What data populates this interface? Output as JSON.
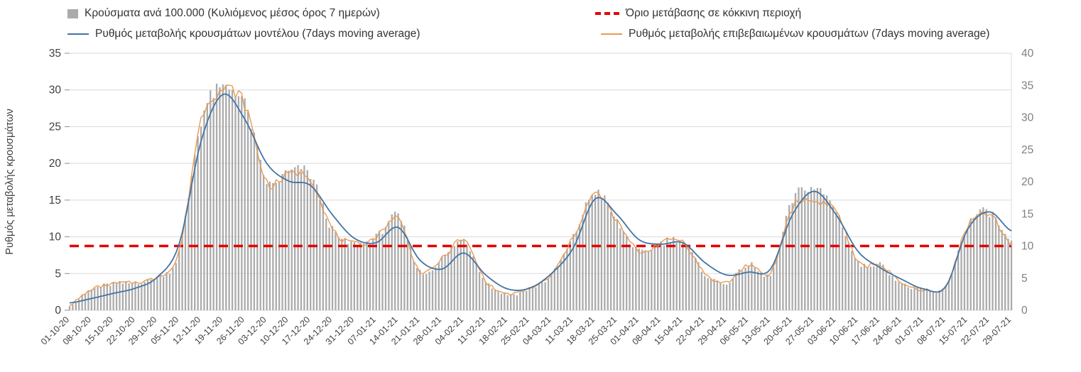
{
  "legend": {
    "bars": "Κρούσματα ανά 100.000 (Κυλιόμενος μέσος όρος 7 ημερών)",
    "threshold": "Όριο μετάβασης σε κόκκινη περιοχή",
    "model": "Ρυθμός μεταβολής κρουσμάτων μοντέλου (7days moving average)",
    "confirmed": "Ρυθμός μεταβολής επιβεβαιωμένων κρουσμάτων (7days moving average)"
  },
  "chart_data": {
    "type": "bar+line",
    "title": "",
    "ylabel_left": "Ρυθμός μεταβολής κρουσμάτων",
    "legend_position": "top",
    "grid": true,
    "x_tick_rotation": -45,
    "y_left": {
      "min": 0,
      "max": 35,
      "step": 5,
      "ticks": [
        "0",
        "5",
        "10",
        "15",
        "20",
        "25",
        "30",
        "35"
      ]
    },
    "y_right": {
      "min": 0,
      "max": 40,
      "step": 5,
      "ticks": [
        "0",
        "5",
        "10",
        "15",
        "20",
        "25",
        "30",
        "35",
        "40"
      ]
    },
    "x_labels": [
      "01-10-20",
      "08-10-20",
      "15-10-20",
      "22-10-20",
      "29-10-20",
      "05-11-20",
      "12-11-20",
      "19-11-20",
      "26-11-20",
      "03-12-20",
      "10-12-20",
      "17-12-20",
      "24-12-20",
      "31-12-20",
      "07-01-21",
      "14-01-21",
      "21-01-21",
      "28-01-21",
      "04-02-21",
      "11-02-21",
      "18-02-21",
      "25-02-21",
      "04-03-21",
      "11-03-21",
      "18-03-21",
      "25-03-21",
      "01-04-21",
      "08-04-21",
      "15-04-21",
      "22-04-21",
      "29-04-21",
      "06-05-21",
      "13-05-21",
      "20-05-21",
      "27-05-21",
      "03-06-21",
      "10-06-21",
      "17-06-21",
      "24-06-21",
      "01-07-21",
      "08-07-21",
      "15-07-21",
      "22-07-21",
      "29-07-21"
    ],
    "threshold": {
      "name": "Όριο μετάβασης σε κόκκινη περιοχή",
      "axis": "right",
      "value": 10
    },
    "series": [
      {
        "key": "bars",
        "name": "Κρούσματα ανά 100.000 (Κυλιόμενος μέσος όρος 7 ημερών)",
        "type": "bar",
        "axis": "right",
        "weekly_values": [
          0.9,
          3.2,
          4.1,
          4.3,
          5.2,
          9.1,
          29.5,
          34.5,
          32.0,
          20.0,
          21.5,
          21.0,
          12.5,
          10.3,
          11.4,
          14.5,
          6.0,
          8.0,
          10.8,
          4.6,
          2.5,
          3.4,
          5.5,
          11.4,
          18.5,
          13.7,
          9.1,
          10.5,
          10.7,
          5.7,
          4.3,
          7.1,
          5.7,
          17.0,
          19.0,
          15.5,
          7.4,
          7.1,
          4.1,
          3.2,
          3.7,
          13.1,
          15.2,
          10.3
        ]
      },
      {
        "key": "model",
        "name": "Ρυθμός μεταβολής κρουσμάτων μοντέλου (7days moving average)",
        "type": "line",
        "axis": "left",
        "weekly_values": [
          1.0,
          1.6,
          2.3,
          3.0,
          4.5,
          9.0,
          23.0,
          29.4,
          26.0,
          20.0,
          17.6,
          17.0,
          13.0,
          9.8,
          9.2,
          11.3,
          6.8,
          5.6,
          7.8,
          4.8,
          2.9,
          3.0,
          5.0,
          8.5,
          15.2,
          13.0,
          9.6,
          9.0,
          9.2,
          6.5,
          4.8,
          5.2,
          5.6,
          13.0,
          16.2,
          13.0,
          8.0,
          5.8,
          4.2,
          2.9,
          3.2,
          11.0,
          13.4,
          10.8
        ]
      },
      {
        "key": "confirmed",
        "name": "Ρυθμός μεταβολής επιβεβαιωμένων κρουσμάτων (7days moving average)",
        "type": "line",
        "axis": "left",
        "weekly_values": [
          0.8,
          2.8,
          3.6,
          3.8,
          4.6,
          8.0,
          26.0,
          30.0,
          28.0,
          17.5,
          18.5,
          18.0,
          11.0,
          9.0,
          10.0,
          12.5,
          5.2,
          7.0,
          9.5,
          4.0,
          2.2,
          3.0,
          4.8,
          10.0,
          15.8,
          12.0,
          8.0,
          9.2,
          9.4,
          5.0,
          3.8,
          6.2,
          5.0,
          14.0,
          14.8,
          13.5,
          6.5,
          6.2,
          3.6,
          2.8,
          3.2,
          11.5,
          13.0,
          9.0
        ]
      }
    ],
    "colors": {
      "bar": "#ababab",
      "model": "#4374a5",
      "confirmed": "#ea9a52",
      "threshold": "#e60000",
      "grid": "#d9d9d9",
      "text": "#404040",
      "right_tick_text": "#808080"
    }
  }
}
